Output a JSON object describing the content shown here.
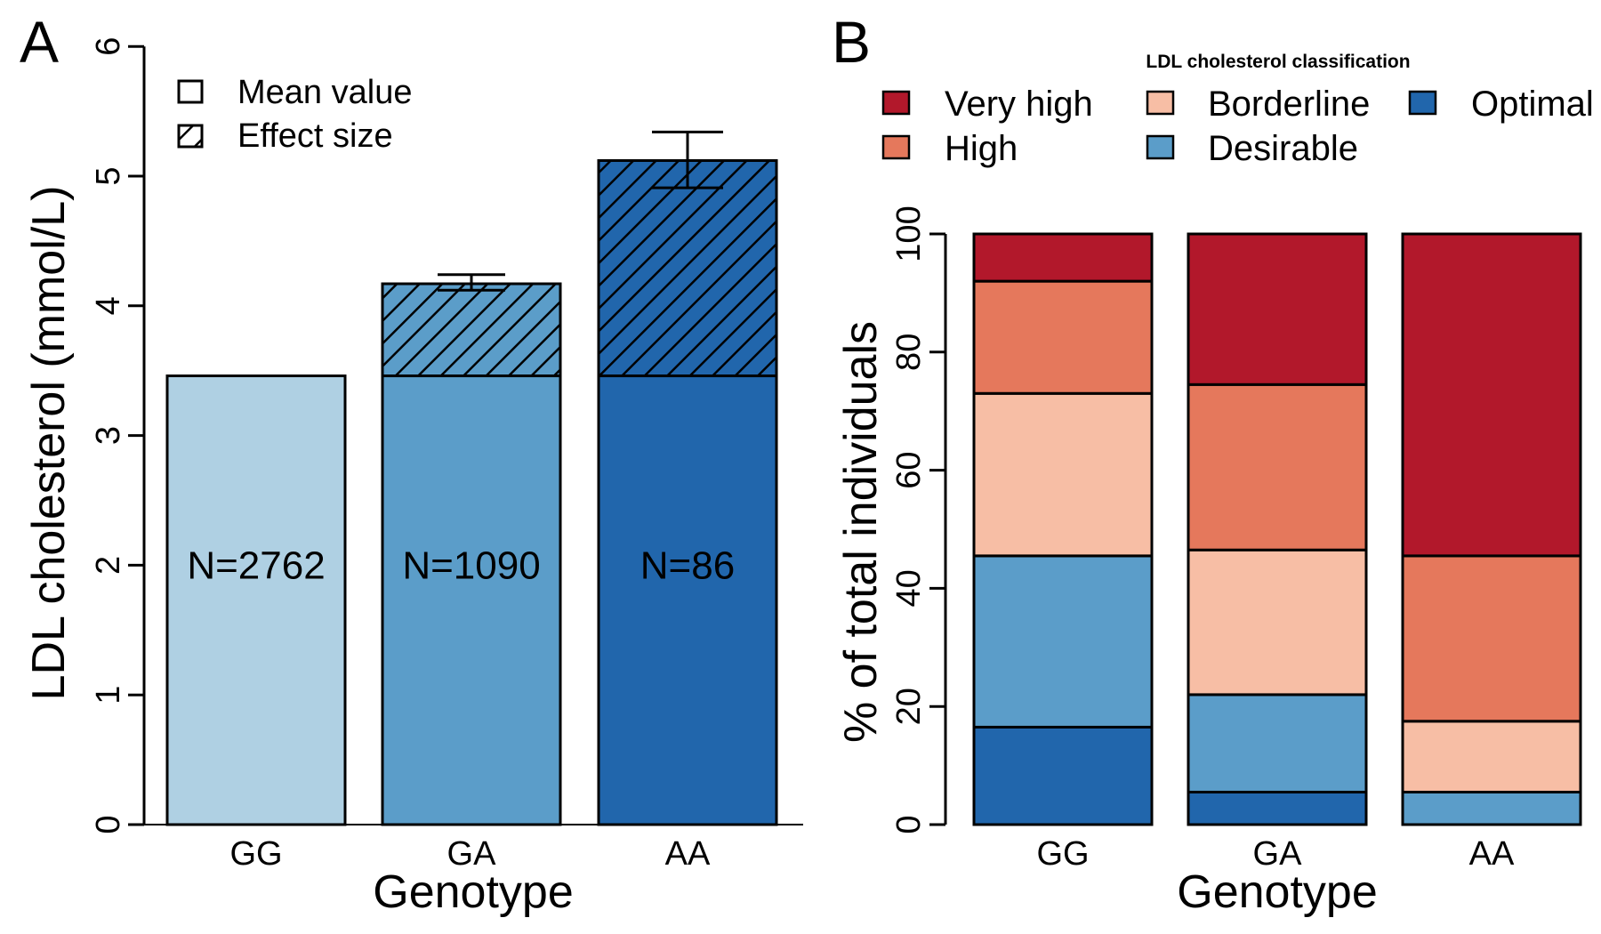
{
  "panel_labels": {
    "a": "A",
    "b": "B"
  },
  "chart_data": [
    {
      "type": "bar",
      "panel": "A",
      "ylabel": "LDL cholesterol (mmol/L)",
      "xlabel": "Genotype",
      "ylim": [
        0,
        6
      ],
      "yticks": [
        "0",
        "1",
        "2",
        "3",
        "4",
        "5",
        "6"
      ],
      "categories": [
        "GG",
        "GA",
        "AA"
      ],
      "legend": {
        "placement": "top-left",
        "items": [
          "Mean value",
          "Effect size"
        ]
      },
      "series": [
        {
          "name": "Mean value",
          "values": [
            3.46,
            3.46,
            3.46
          ]
        },
        {
          "name": "Effect size",
          "values": [
            0,
            0.71,
            1.66
          ]
        }
      ],
      "error_bars": [
        null,
        {
          "low": 4.12,
          "high": 4.24
        },
        {
          "low": 4.91,
          "high": 5.34
        }
      ],
      "n_labels": [
        "N=2762",
        "N=1090",
        "N=86"
      ],
      "colors": [
        "#afd0e3",
        "#5b9dc9",
        "#2166ac"
      ]
    },
    {
      "type": "bar",
      "stacked": true,
      "panel": "B",
      "ylabel": "% of total individuals",
      "xlabel": "Genotype",
      "ylim": [
        0,
        100
      ],
      "yticks": [
        "0",
        "20",
        "40",
        "60",
        "80",
        "100"
      ],
      "categories": [
        "GG",
        "GA",
        "AA"
      ],
      "legend": {
        "title": "LDL cholesterol classification",
        "placement": "top",
        "items": [
          "Very high",
          "High",
          "Borderline",
          "Desirable",
          "Optimal"
        ]
      },
      "series": [
        {
          "name": "Optimal",
          "color": "#2166ac",
          "values": [
            16.5,
            5.5,
            0
          ]
        },
        {
          "name": "Desirable",
          "color": "#5b9dc9",
          "values": [
            29,
            16.5,
            5.5
          ]
        },
        {
          "name": "Borderline",
          "color": "#f7bea5",
          "values": [
            27.5,
            24.5,
            12
          ]
        },
        {
          "name": "High",
          "color": "#e5785c",
          "values": [
            19,
            28,
            28
          ]
        },
        {
          "name": "Very high",
          "color": "#b2182b",
          "values": [
            8,
            25.5,
            54.5
          ]
        }
      ]
    }
  ]
}
